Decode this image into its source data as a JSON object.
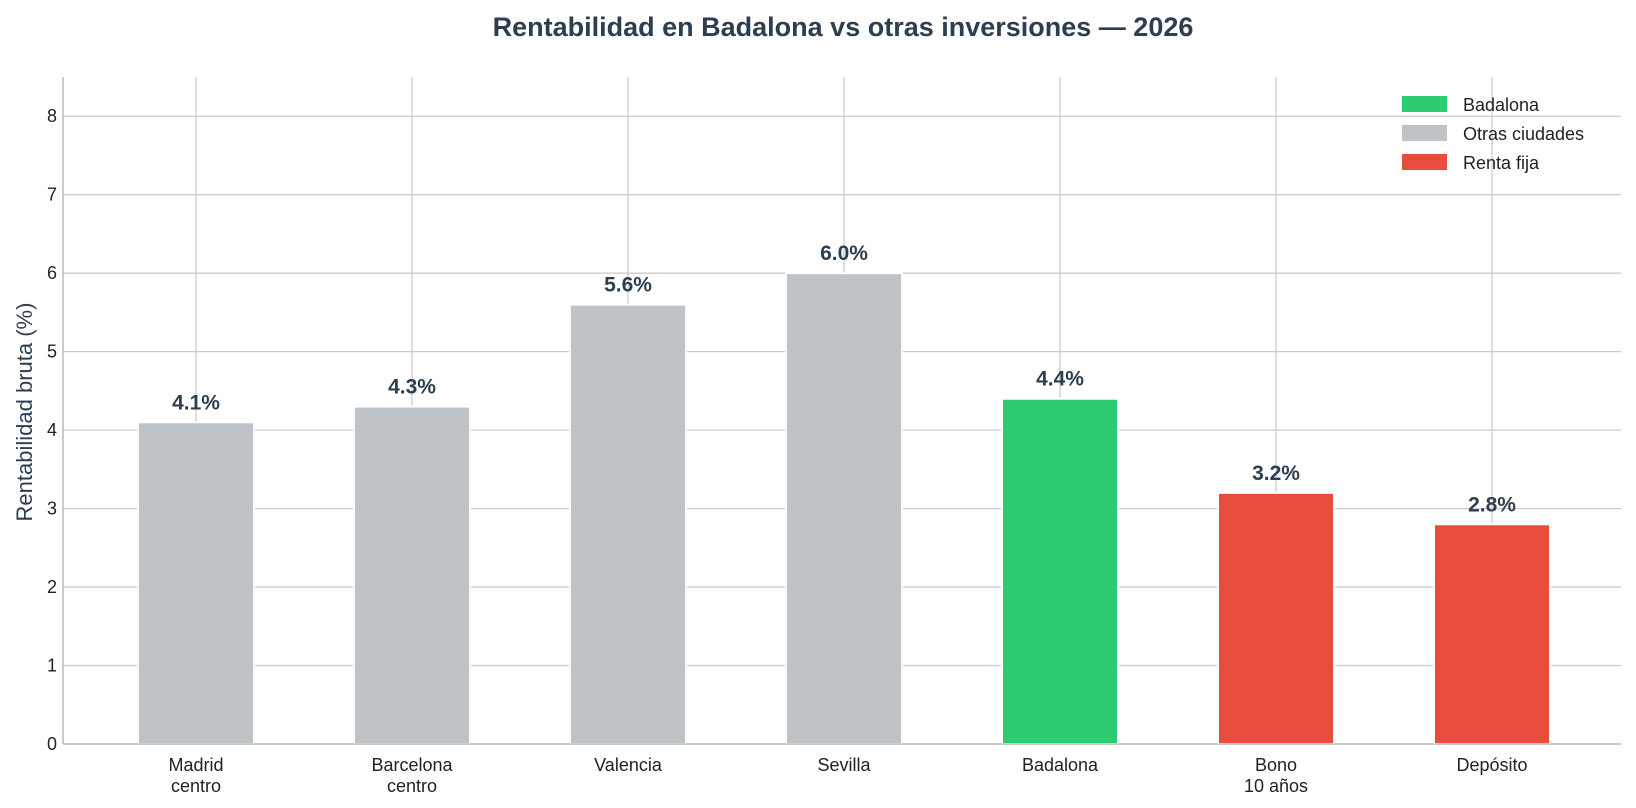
{
  "chart_data": {
    "type": "bar",
    "title": "Rentabilidad en Badalona vs otras inversiones — 2026",
    "ylabel": "Rentabilidad bruta (%)",
    "xlabel": "",
    "ylim": [
      0,
      8.5
    ],
    "yticks": [
      "0",
      "1",
      "2",
      "3",
      "4",
      "5",
      "6",
      "7",
      "8"
    ],
    "grid": true,
    "legend_position": "top-right",
    "categories": [
      [
        "Madrid",
        "centro"
      ],
      [
        "Barcelona",
        "centro"
      ],
      [
        "Valencia"
      ],
      [
        "Sevilla"
      ],
      [
        "Badalona"
      ],
      [
        "Bono",
        "10 años"
      ],
      [
        "Depósito"
      ]
    ],
    "values": [
      4.1,
      4.3,
      5.6,
      6.0,
      4.4,
      3.2,
      2.8
    ],
    "data_labels": [
      "4.1%",
      "4.3%",
      "5.6%",
      "6.0%",
      "4.4%",
      "3.2%",
      "2.8%"
    ],
    "groups": [
      "Otras ciudades",
      "Otras ciudades",
      "Otras ciudades",
      "Otras ciudades",
      "Badalona",
      "Renta fija",
      "Renta fija"
    ],
    "legend": [
      {
        "name": "Badalona",
        "color": "#2ecc71"
      },
      {
        "name": "Otras ciudades",
        "color": "#bdc3c7"
      },
      {
        "name": "Renta fija",
        "color": "#e74c3c"
      }
    ]
  }
}
